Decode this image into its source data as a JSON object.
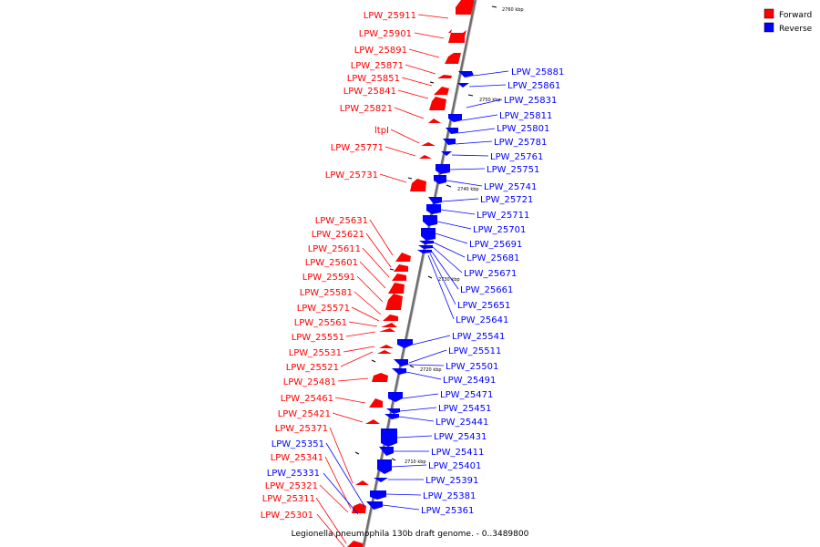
{
  "caption": "Legionella pneumophila 130b draft genome. - 0..3489800",
  "colors": {
    "forward": "#ff0000",
    "reverse": "#0000ff",
    "backbone": "#808080"
  },
  "legend": [
    {
      "label": "Forward",
      "color": "#ff0000"
    },
    {
      "label": "Reverse",
      "color": "#0000ff"
    }
  ],
  "ticks": [
    "2760 kbp",
    "2750 kbp",
    "2740 kbp",
    "2730 kbp",
    "2720 kbp",
    "2710 kbp"
  ],
  "forward_labels": [
    "LPW_25911",
    "LPW_25901",
    "LPW_25891",
    "LPW_25871",
    "LPW_25851",
    "LPW_25841",
    "LPW_25821",
    "ltpI",
    "LPW_25771",
    "LPW_25731",
    "LPW_25631",
    "LPW_25621",
    "LPW_25611",
    "LPW_25601",
    "LPW_25591",
    "LPW_25581",
    "LPW_25571",
    "LPW_25561",
    "LPW_25551",
    "LPW_25531",
    "LPW_25521",
    "LPW_25481",
    "LPW_25461",
    "LPW_25421",
    "LPW_25371",
    "LPW_25341",
    "LPW_25321",
    "LPW_25311",
    "LPW_25301"
  ],
  "reverse_labels": [
    "LPW_25881",
    "LPW_25861",
    "LPW_25831",
    "LPW_25811",
    "LPW_25801",
    "LPW_25781",
    "LPW_25761",
    "LPW_25751",
    "LPW_25741",
    "LPW_25721",
    "LPW_25711",
    "LPW_25701",
    "LPW_25691",
    "LPW_25681",
    "LPW_25671",
    "LPW_25661",
    "LPW_25651",
    "LPW_25641",
    "LPW_25541",
    "LPW_25511",
    "LPW_25501",
    "LPW_25491",
    "LPW_25471",
    "LPW_25451",
    "LPW_25441",
    "LPW_25431",
    "LPW_25411",
    "LPW_25401",
    "LPW_25391",
    "LPW_25381",
    "LPW_25361"
  ],
  "left_reverse_labels": [
    "LPW_25351",
    "LPW_25331"
  ]
}
